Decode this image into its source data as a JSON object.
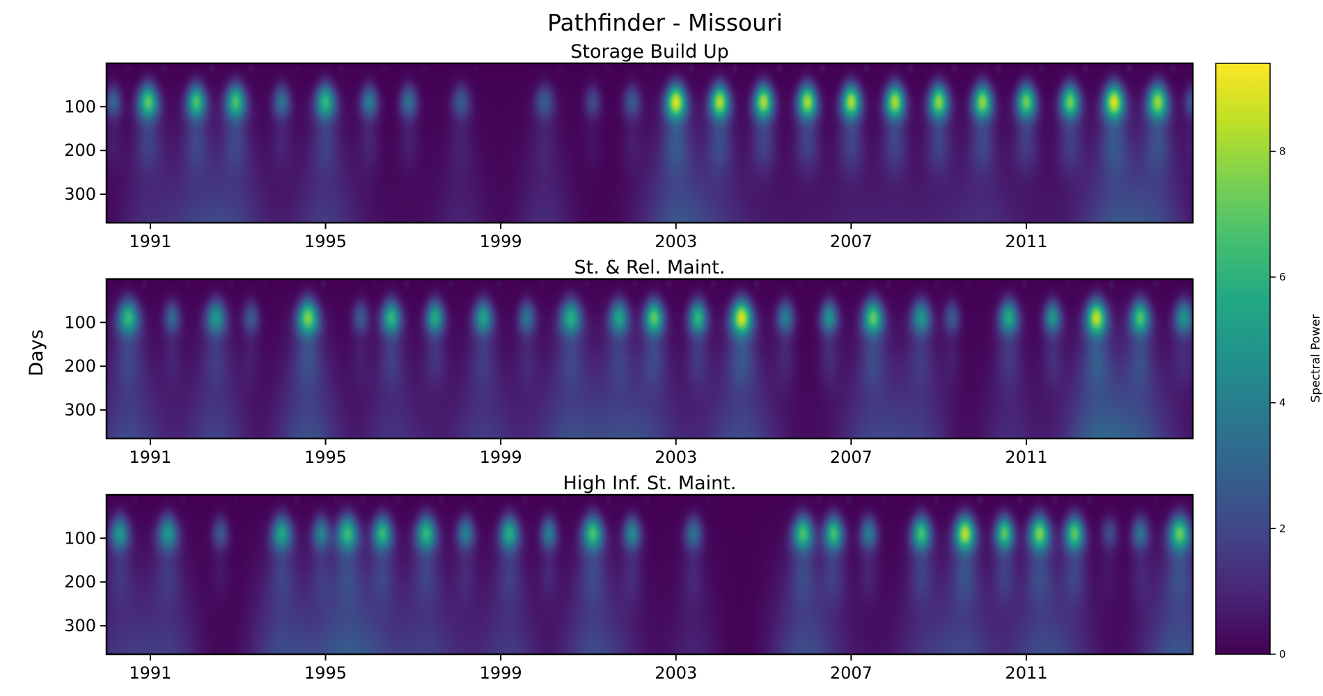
{
  "figure": {
    "title": "Pathfinder - Missouri",
    "ylabel": "Days",
    "colorbar_label": "Spectral Power"
  },
  "chart_data": {
    "type": "heatmap",
    "colormap": "viridis",
    "vmin": 0,
    "vmax": 9.4,
    "colorbar_ticks": [
      "0",
      "2",
      "4",
      "6",
      "8"
    ],
    "panels": [
      {
        "title": "Storage Build Up",
        "xlim": [
          1990,
          2014.8
        ],
        "ylim": [
          365,
          1
        ],
        "x_ticks": [
          "1991",
          "1995",
          "1999",
          "2003",
          "2007",
          "2011"
        ],
        "y_ticks": [
          "100",
          "200",
          "300"
        ],
        "blobs": [
          {
            "t": 1990.15,
            "p": 0.35,
            "wide": 0.3,
            "deep": 0.0
          },
          {
            "t": 1990.95,
            "p": 0.8,
            "wide": 0.5,
            "deep": 0.25
          },
          {
            "t": 1992.05,
            "p": 0.75,
            "wide": 0.45,
            "deep": 0.3
          },
          {
            "t": 1992.95,
            "p": 0.75,
            "wide": 0.5,
            "deep": 0.35
          },
          {
            "t": 1994.0,
            "p": 0.4,
            "wide": 0.35,
            "deep": 0.05
          },
          {
            "t": 1995.0,
            "p": 0.7,
            "wide": 0.5,
            "deep": 0.35
          },
          {
            "t": 1996.0,
            "p": 0.45,
            "wide": 0.35,
            "deep": 0.05
          },
          {
            "t": 1996.9,
            "p": 0.4,
            "wide": 0.35,
            "deep": 0.05
          },
          {
            "t": 1998.1,
            "p": 0.3,
            "wide": 0.4,
            "deep": 0.2
          },
          {
            "t": 2000.0,
            "p": 0.3,
            "wide": 0.45,
            "deep": 0.25
          },
          {
            "t": 2001.1,
            "p": 0.25,
            "wide": 0.3,
            "deep": 0.0
          },
          {
            "t": 2002.0,
            "p": 0.3,
            "wide": 0.35,
            "deep": 0.05
          },
          {
            "t": 2003.0,
            "p": 1.0,
            "wide": 0.5,
            "deep": 0.5
          },
          {
            "t": 2004.0,
            "p": 0.95,
            "wide": 0.45,
            "deep": 0.25
          },
          {
            "t": 2005.0,
            "p": 0.95,
            "wide": 0.45,
            "deep": 0.1
          },
          {
            "t": 2006.0,
            "p": 0.95,
            "wide": 0.45,
            "deep": 0.1
          },
          {
            "t": 2007.0,
            "p": 0.95,
            "wide": 0.45,
            "deep": 0.15
          },
          {
            "t": 2008.0,
            "p": 0.95,
            "wide": 0.45,
            "deep": 0.15
          },
          {
            "t": 2009.0,
            "p": 0.9,
            "wide": 0.45,
            "deep": 0.15
          },
          {
            "t": 2010.0,
            "p": 0.9,
            "wide": 0.45,
            "deep": 0.25
          },
          {
            "t": 2011.0,
            "p": 0.85,
            "wide": 0.45,
            "deep": 0.1
          },
          {
            "t": 2012.0,
            "p": 0.85,
            "wide": 0.45,
            "deep": 0.1
          },
          {
            "t": 2013.0,
            "p": 1.0,
            "wide": 0.5,
            "deep": 0.45
          },
          {
            "t": 2014.0,
            "p": 0.9,
            "wide": 0.5,
            "deep": 0.4
          },
          {
            "t": 2014.8,
            "p": 0.3,
            "wide": 0.3,
            "deep": 0.0
          }
        ]
      },
      {
        "title": "St. & Rel. Maint.",
        "xlim": [
          1990,
          2014.8
        ],
        "ylim": [
          365,
          1
        ],
        "x_ticks": [
          "1991",
          "1995",
          "1999",
          "2003",
          "2007",
          "2011"
        ],
        "y_ticks": [
          "100",
          "200",
          "300"
        ],
        "blobs": [
          {
            "t": 1990.5,
            "p": 0.7,
            "wide": 0.55,
            "deep": 0.45
          },
          {
            "t": 1991.5,
            "p": 0.35,
            "wide": 0.3,
            "deep": 0.05
          },
          {
            "t": 1992.5,
            "p": 0.55,
            "wide": 0.5,
            "deep": 0.4
          },
          {
            "t": 1993.3,
            "p": 0.3,
            "wide": 0.3,
            "deep": 0.0
          },
          {
            "t": 1994.6,
            "p": 0.85,
            "wide": 0.55,
            "deep": 0.5
          },
          {
            "t": 1995.8,
            "p": 0.3,
            "wide": 0.3,
            "deep": 0.0
          },
          {
            "t": 1996.5,
            "p": 0.7,
            "wide": 0.45,
            "deep": 0.3
          },
          {
            "t": 1997.5,
            "p": 0.65,
            "wide": 0.4,
            "deep": 0.1
          },
          {
            "t": 1998.6,
            "p": 0.6,
            "wide": 0.45,
            "deep": 0.35
          },
          {
            "t": 1999.6,
            "p": 0.4,
            "wide": 0.35,
            "deep": 0.1
          },
          {
            "t": 2000.6,
            "p": 0.65,
            "wide": 0.55,
            "deep": 0.45
          },
          {
            "t": 2001.7,
            "p": 0.6,
            "wide": 0.45,
            "deep": 0.35
          },
          {
            "t": 2002.5,
            "p": 0.8,
            "wide": 0.45,
            "deep": 0.3
          },
          {
            "t": 2003.5,
            "p": 0.7,
            "wide": 0.4,
            "deep": 0.1
          },
          {
            "t": 2004.5,
            "p": 1.0,
            "wide": 0.55,
            "deep": 0.45
          },
          {
            "t": 2005.5,
            "p": 0.45,
            "wide": 0.35,
            "deep": 0.05
          },
          {
            "t": 2006.5,
            "p": 0.55,
            "wide": 0.35,
            "deep": 0.05
          },
          {
            "t": 2007.5,
            "p": 0.8,
            "wide": 0.5,
            "deep": 0.4
          },
          {
            "t": 2008.6,
            "p": 0.55,
            "wide": 0.45,
            "deep": 0.35
          },
          {
            "t": 2009.3,
            "p": 0.3,
            "wide": 0.3,
            "deep": 0.0
          },
          {
            "t": 2010.6,
            "p": 0.65,
            "wide": 0.45,
            "deep": 0.25
          },
          {
            "t": 2011.6,
            "p": 0.55,
            "wide": 0.35,
            "deep": 0.05
          },
          {
            "t": 2012.6,
            "p": 0.95,
            "wide": 0.5,
            "deep": 0.6
          },
          {
            "t": 2013.6,
            "p": 0.75,
            "wide": 0.45,
            "deep": 0.45
          },
          {
            "t": 2014.6,
            "p": 0.55,
            "wide": 0.45,
            "deep": 0.1
          }
        ]
      },
      {
        "title": "High Inf. St. Maint.",
        "xlim": [
          1990,
          2014.8
        ],
        "ylim": [
          365,
          1
        ],
        "x_ticks": [
          "1991",
          "1995",
          "1999",
          "2003",
          "2007",
          "2011"
        ],
        "y_ticks": [
          "100",
          "200",
          "300"
        ],
        "blobs": [
          {
            "t": 1990.3,
            "p": 0.55,
            "wide": 0.45,
            "deep": 0.3
          },
          {
            "t": 1991.4,
            "p": 0.55,
            "wide": 0.5,
            "deep": 0.35
          },
          {
            "t": 1992.6,
            "p": 0.3,
            "wide": 0.3,
            "deep": 0.0
          },
          {
            "t": 1994.0,
            "p": 0.6,
            "wide": 0.5,
            "deep": 0.45
          },
          {
            "t": 1994.9,
            "p": 0.45,
            "wide": 0.35,
            "deep": 0.1
          },
          {
            "t": 1995.5,
            "p": 0.7,
            "wide": 0.55,
            "deep": 0.5
          },
          {
            "t": 1996.3,
            "p": 0.7,
            "wide": 0.45,
            "deep": 0.2
          },
          {
            "t": 1997.3,
            "p": 0.7,
            "wide": 0.5,
            "deep": 0.35
          },
          {
            "t": 1998.2,
            "p": 0.45,
            "wide": 0.35,
            "deep": 0.1
          },
          {
            "t": 1999.2,
            "p": 0.65,
            "wide": 0.45,
            "deep": 0.35
          },
          {
            "t": 2000.1,
            "p": 0.45,
            "wide": 0.3,
            "deep": 0.0
          },
          {
            "t": 2001.1,
            "p": 0.75,
            "wide": 0.5,
            "deep": 0.45
          },
          {
            "t": 2002.0,
            "p": 0.5,
            "wide": 0.35,
            "deep": 0.1
          },
          {
            "t": 2003.4,
            "p": 0.4,
            "wide": 0.35,
            "deep": 0.2
          },
          {
            "t": 2005.9,
            "p": 0.75,
            "wide": 0.5,
            "deep": 0.45
          },
          {
            "t": 2006.6,
            "p": 0.75,
            "wide": 0.45,
            "deep": 0.1
          },
          {
            "t": 2007.4,
            "p": 0.45,
            "wide": 0.35,
            "deep": 0.05
          },
          {
            "t": 2008.6,
            "p": 0.75,
            "wide": 0.45,
            "deep": 0.25
          },
          {
            "t": 2009.6,
            "p": 0.95,
            "wide": 0.5,
            "deep": 0.4
          },
          {
            "t": 2010.5,
            "p": 0.8,
            "wide": 0.4,
            "deep": 0.05
          },
          {
            "t": 2011.3,
            "p": 0.85,
            "wide": 0.5,
            "deep": 0.4
          },
          {
            "t": 2012.1,
            "p": 0.8,
            "wide": 0.45,
            "deep": 0.2
          },
          {
            "t": 2012.9,
            "p": 0.25,
            "wide": 0.3,
            "deep": 0.0
          },
          {
            "t": 2013.6,
            "p": 0.4,
            "wide": 0.35,
            "deep": 0.05
          },
          {
            "t": 2014.5,
            "p": 0.8,
            "wide": 0.55,
            "deep": 0.55
          }
        ]
      }
    ]
  }
}
